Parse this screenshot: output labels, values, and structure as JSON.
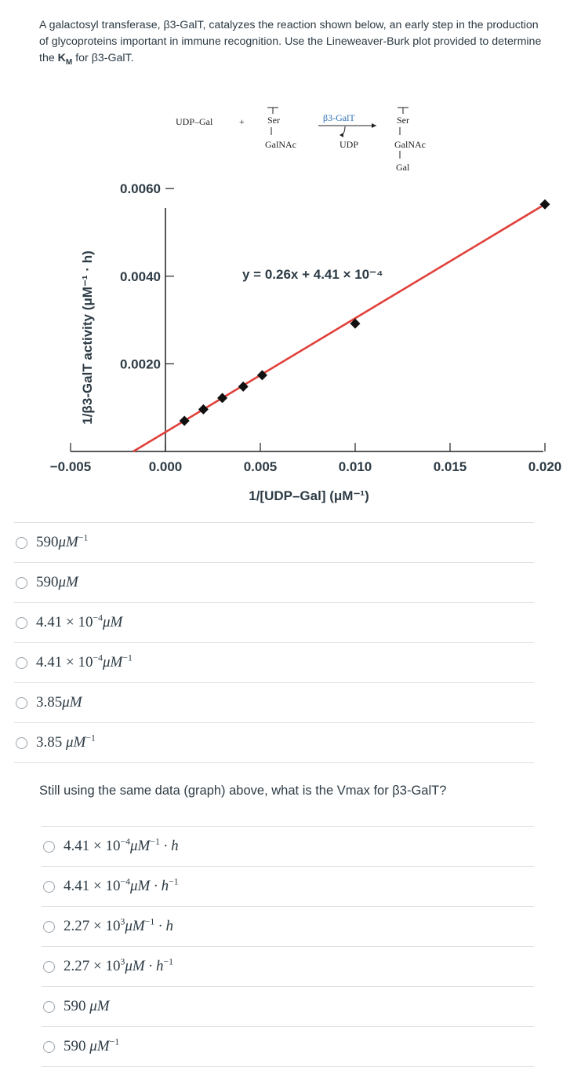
{
  "question1": {
    "text_a": "A galactosyl transferase, β3-GalT, catalyzes the reaction shown below, an early step in the production of glycoproteins important in immune recognition. Use the Lineweaver-Burk plot provided to determine the ",
    "km_main": "K",
    "km_sub": "M",
    "text_b": " for β3-GalT."
  },
  "reaction": {
    "udp_gal": "UDP–Gal",
    "plus": "+",
    "ser_left": "Ser",
    "galnac_left": "GalNAc",
    "enzyme": "β3-GalT",
    "udp": "UDP",
    "ser_right": "Ser",
    "galnac_right": "GalNAc",
    "gal": "Gal"
  },
  "chart_data": {
    "type": "scatter",
    "title": "",
    "xlabel": "1/[UDP–Gal] (μM⁻¹)",
    "ylabel": "1/β3-GalT activity (μM⁻¹ · h)",
    "equation": "y = 0.26x + 4.41 × 10⁻⁴",
    "fit": {
      "slope": 0.26,
      "intercept": 0.000441,
      "color": "#e0403a"
    },
    "xlim": [
      -0.005,
      0.02
    ],
    "ylim": [
      0,
      0.0062
    ],
    "x_ticks": [
      "−0.005",
      "0.000",
      "0.005",
      "0.010",
      "0.015",
      "0.020"
    ],
    "y_ticks": [
      "0.0060",
      "0.0040",
      "0.0020"
    ],
    "points": [
      {
        "x": 0.001,
        "y": 0.0007
      },
      {
        "x": 0.002,
        "y": 0.00096
      },
      {
        "x": 0.003,
        "y": 0.00122
      },
      {
        "x": 0.0041,
        "y": 0.00148
      },
      {
        "x": 0.0051,
        "y": 0.00174
      },
      {
        "x": 0.01,
        "y": 0.00292
      },
      {
        "x": 0.02,
        "y": 0.00564
      }
    ],
    "grid": false
  },
  "options1": [
    {
      "value": "590",
      "unit": "μM",
      "exp": "−1"
    },
    {
      "value": "590",
      "unit": "μM",
      "exp": ""
    },
    {
      "value": "4.41 × 10",
      "pow": "−4",
      "unit": "μM",
      "exp": ""
    },
    {
      "value": "4.41 × 10",
      "pow": "−4",
      "unit": "μM",
      "exp": "−1"
    },
    {
      "value": "3.85",
      "unit": "μM",
      "exp": ""
    },
    {
      "value": "3.85 ",
      "unit": "μM",
      "exp": "−1"
    }
  ],
  "question2": {
    "text": "Still using the same data (graph) above, what is the Vmax for β3-GalT?"
  },
  "options2": [
    {
      "value": "4.41 × 10",
      "pow": "−4",
      "unit": "μM",
      "exp": "−1",
      "tail": " · h",
      "tail_exp": ""
    },
    {
      "value": "4.41 × 10",
      "pow": "−4",
      "unit": "μM",
      "exp": "",
      "tail": " · h",
      "tail_exp": "−1"
    },
    {
      "value": "2.27 × 10",
      "pow": "3",
      "unit": "μM",
      "exp": "−1",
      "tail": " · h",
      "tail_exp": ""
    },
    {
      "value": "2.27 × 10",
      "pow": "3",
      "unit": "μM",
      "exp": "",
      "tail": " · h",
      "tail_exp": "−1"
    },
    {
      "value": "590 ",
      "pow": "",
      "unit": "μM",
      "exp": "",
      "tail": "",
      "tail_exp": ""
    },
    {
      "value": "590 ",
      "pow": "",
      "unit": "μM",
      "exp": "−1",
      "tail": "",
      "tail_exp": ""
    }
  ]
}
